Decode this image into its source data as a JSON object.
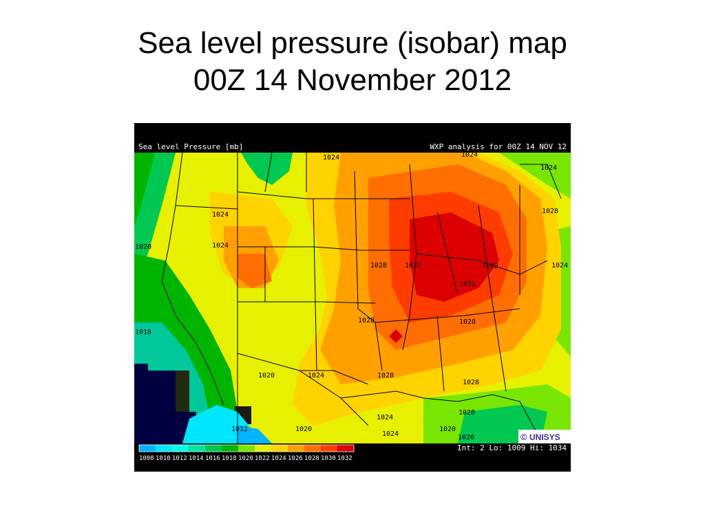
{
  "slide": {
    "title_line1": "Sea level pressure (isobar) map",
    "title_line2": "00Z 14 November 2012"
  },
  "map": {
    "header_left": "Sea level Pressure [mb]",
    "header_right": "WXP analysis for 00Z 14 NOV 12",
    "footer_info": "Int: 2 Lo: 1009 Hi: 1034",
    "logo_text": "UNISYS",
    "logo_symbol": "©",
    "contour_labels": [
      "1024",
      "1024",
      "1024",
      "1024",
      "1028",
      "1024",
      "1020",
      "1028",
      "1032",
      "1032",
      "1032",
      "1028",
      "1024",
      "1028",
      "1028",
      "1024",
      "1020",
      "1024",
      "1020",
      "1020",
      "1016",
      "1012",
      "1020",
      "1028",
      "1024",
      "1020"
    ],
    "legend": {
      "labels": [
        "1008",
        "1010",
        "1012",
        "1014",
        "1016",
        "1018",
        "1020",
        "1022",
        "1024",
        "1026",
        "1028",
        "1030",
        "1032"
      ],
      "colors": [
        "#00b4ff",
        "#00e6ff",
        "#00ffe6",
        "#00e6a0",
        "#00c850",
        "#00b400",
        "#78e600",
        "#e6f000",
        "#ffd200",
        "#ffa000",
        "#ff6e00",
        "#ff3c00",
        "#dc0000"
      ]
    }
  }
}
